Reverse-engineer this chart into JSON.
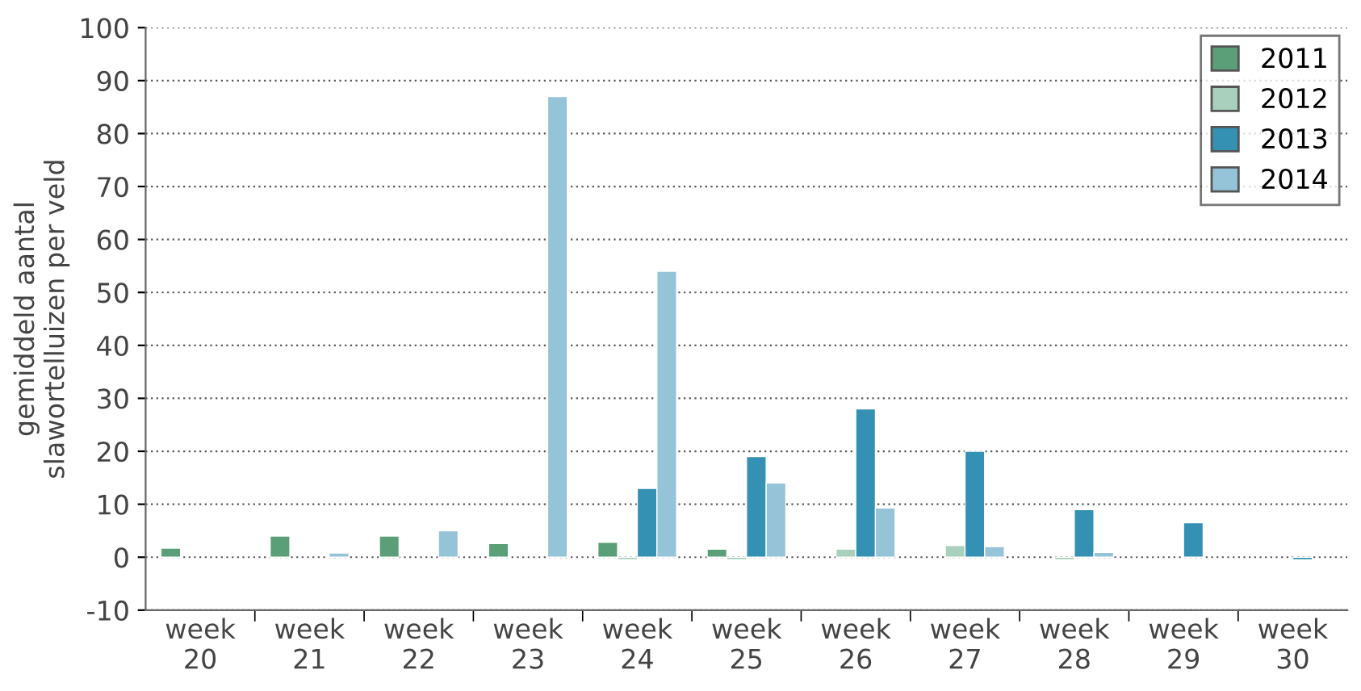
{
  "chart_data": {
    "type": "bar",
    "ylabel": "gemiddeld aantal\nslawortelluizen per veld",
    "categories": [
      "week\n20",
      "week\n21",
      "week\n22",
      "week\n23",
      "week\n24",
      "week\n25",
      "week\n26",
      "week\n27",
      "week\n28",
      "week\n29",
      "week\n30"
    ],
    "series": [
      {
        "name": "2011",
        "color": "#5a9f77",
        "values": [
          1.7,
          4,
          4,
          2.6,
          2.8,
          1.5,
          null,
          null,
          null,
          null,
          null
        ]
      },
      {
        "name": "2012",
        "color": "#a8d0bc",
        "values": [
          null,
          null,
          null,
          null,
          -0.5,
          -0.5,
          1.5,
          2.2,
          -0.5,
          null,
          null
        ]
      },
      {
        "name": "2013",
        "color": "#3491b3",
        "values": [
          null,
          null,
          null,
          null,
          13,
          19,
          28,
          20,
          9,
          6.5,
          -0.5
        ]
      },
      {
        "name": "2014",
        "color": "#95c3d8",
        "values": [
          null,
          0.8,
          5,
          87,
          54,
          14,
          9.3,
          2,
          0.9,
          null,
          null
        ]
      }
    ],
    "ylim": [
      -10,
      100
    ],
    "yticks": [
      -10,
      0,
      10,
      20,
      30,
      40,
      50,
      60,
      70,
      80,
      90,
      100
    ],
    "grid": "y",
    "legend": "top right"
  }
}
